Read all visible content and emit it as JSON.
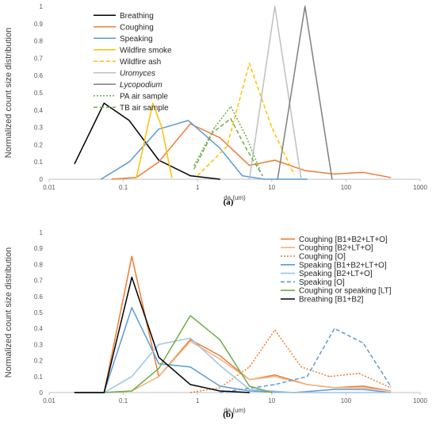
{
  "chart_data": [
    {
      "id": "a",
      "type": "line",
      "caption": "(a)",
      "xlabel": "da (um)",
      "ylabel": "Normalized count size distribution",
      "x_scale": "log",
      "xlim": [
        0.01,
        1000
      ],
      "ylim": [
        0,
        1
      ],
      "x_ticks": [
        "0.01",
        "0.1",
        "1",
        "10",
        "100",
        "1000"
      ],
      "y_ticks": [
        "0",
        "0.1",
        "0.2",
        "0.3",
        "0.4",
        "0.5",
        "0.6",
        "0.7",
        "0.8",
        "0.9",
        "1"
      ],
      "grid": false,
      "legend_position": "top-left",
      "series": [
        {
          "name": "Breathing",
          "color": "#000000",
          "dash": "solid",
          "italic": false,
          "points": [
            [
              0.022,
              0.09
            ],
            [
              0.055,
              0.44
            ],
            [
              0.12,
              0.34
            ],
            [
              0.3,
              0.11
            ],
            [
              0.8,
              0.02
            ],
            [
              2,
              0.0
            ]
          ]
        },
        {
          "name": "Coughing",
          "color": "#ED7D31",
          "dash": "solid",
          "italic": false,
          "points": [
            [
              0.07,
              0.0
            ],
            [
              0.15,
              0.01
            ],
            [
              0.3,
              0.1
            ],
            [
              0.8,
              0.32
            ],
            [
              2,
              0.24
            ],
            [
              5,
              0.08
            ],
            [
              11,
              0.11
            ],
            [
              28,
              0.05
            ],
            [
              70,
              0.03
            ],
            [
              170,
              0.04
            ],
            [
              400,
              0.01
            ]
          ]
        },
        {
          "name": "Speaking",
          "color": "#5B9BD5",
          "dash": "solid",
          "italic": false,
          "points": [
            [
              0.05,
              0.0
            ],
            [
              0.12,
              0.1
            ],
            [
              0.3,
              0.29
            ],
            [
              0.75,
              0.34
            ],
            [
              2,
              0.18
            ],
            [
              4,
              0.02
            ],
            [
              8,
              0.0
            ],
            [
              30,
              0.0
            ]
          ]
        },
        {
          "name": "Wildfire smoke",
          "color": "#FFC000",
          "dash": "solid",
          "italic": false,
          "points": [
            [
              0.15,
              0.01
            ],
            [
              0.25,
              0.44
            ],
            [
              0.33,
              0.3
            ],
            [
              0.45,
              0.01
            ]
          ]
        },
        {
          "name": "Wildfire ash",
          "color": "#FFC000",
          "dash": "dashed",
          "italic": false,
          "points": [
            [
              1,
              0.02
            ],
            [
              2.5,
              0.19
            ],
            [
              5,
              0.67
            ],
            [
              10,
              0.3
            ],
            [
              20,
              0.03
            ]
          ]
        },
        {
          "name": "Uromyces",
          "color": "#BFBFBF",
          "dash": "solid",
          "italic": true,
          "points": [
            [
              5,
              0.0
            ],
            [
              11,
              1.0
            ],
            [
              25,
              0.0
            ]
          ]
        },
        {
          "name": "Lycopodium",
          "color": "#7F7F7F",
          "dash": "solid",
          "italic": true,
          "points": [
            [
              12,
              0.0
            ],
            [
              28,
              1.0
            ],
            [
              65,
              0.0
            ]
          ]
        },
        {
          "name": "PA air sample",
          "color": "#70AD47",
          "dash": "dotted",
          "italic": false,
          "points": [
            [
              0.9,
              0.08
            ],
            [
              1.7,
              0.3
            ],
            [
              2.8,
              0.42
            ],
            [
              4.5,
              0.25
            ],
            [
              7,
              0.05
            ]
          ]
        },
        {
          "name": "TB air sample",
          "color": "#70AD47",
          "dash": "dashed",
          "italic": false,
          "points": [
            [
              0.9,
              0.06
            ],
            [
              1.6,
              0.27
            ],
            [
              2.8,
              0.35
            ],
            [
              4.5,
              0.18
            ],
            [
              7.5,
              0.02
            ]
          ]
        }
      ]
    },
    {
      "id": "b",
      "type": "line",
      "caption": "(b)",
      "xlabel": "da (um)",
      "ylabel": "Normalized count size distribution",
      "x_scale": "log",
      "xlim": [
        0.01,
        1000
      ],
      "ylim": [
        0,
        1
      ],
      "x_ticks": [
        "0.01",
        "0.1",
        "1",
        "10",
        "100",
        "1000"
      ],
      "y_ticks": [
        "0",
        "0.1",
        "0.2",
        "0.3",
        "0.4",
        "0.5",
        "0.6",
        "0.7",
        "0.8",
        "0.9",
        "1"
      ],
      "grid": false,
      "legend_position": "top-right",
      "series": [
        {
          "name": "Coughing [B1+B2+LT+O]",
          "color": "#ED7D31",
          "dash": "solid",
          "points": [
            [
              0.022,
              0.0
            ],
            [
              0.055,
              0.0
            ],
            [
              0.13,
              0.85
            ],
            [
              0.3,
              0.1
            ],
            [
              0.8,
              0.33
            ],
            [
              2,
              0.23
            ],
            [
              5,
              0.08
            ],
            [
              11,
              0.11
            ],
            [
              30,
              0.05
            ],
            [
              70,
              0.03
            ],
            [
              170,
              0.04
            ],
            [
              400,
              0.01
            ]
          ]
        },
        {
          "name": "Coughing [B2+LT+O]",
          "color": "#F4B183",
          "dash": "solid",
          "points": [
            [
              0.055,
              0.0
            ],
            [
              0.13,
              0.01
            ],
            [
              0.3,
              0.1
            ],
            [
              0.8,
              0.32
            ],
            [
              2,
              0.21
            ],
            [
              5,
              0.08
            ],
            [
              11,
              0.1
            ],
            [
              30,
              0.05
            ],
            [
              70,
              0.03
            ],
            [
              170,
              0.03
            ],
            [
              400,
              0.01
            ]
          ]
        },
        {
          "name": "Coughing [O]",
          "color": "#ED7D31",
          "dash": "dotted",
          "points": [
            [
              0.8,
              0.0
            ],
            [
              2,
              0.03
            ],
            [
              5,
              0.16
            ],
            [
              11,
              0.39
            ],
            [
              25,
              0.16
            ],
            [
              60,
              0.1
            ],
            [
              150,
              0.12
            ],
            [
              400,
              0.03
            ]
          ]
        },
        {
          "name": "Speaking [B1+B2+LT+O]",
          "color": "#5B9BD5",
          "dash": "solid",
          "points": [
            [
              0.022,
              0.0
            ],
            [
              0.055,
              0.0
            ],
            [
              0.13,
              0.53
            ],
            [
              0.3,
              0.18
            ],
            [
              0.8,
              0.16
            ],
            [
              2,
              0.04
            ],
            [
              5,
              0.01
            ],
            [
              20,
              0.0
            ],
            [
              70,
              0.02
            ],
            [
              170,
              0.02
            ],
            [
              400,
              0.0
            ]
          ]
        },
        {
          "name": "Speaking [B2+LT+O]",
          "color": "#9DC3E6",
          "dash": "solid",
          "points": [
            [
              0.055,
              0.0
            ],
            [
              0.13,
              0.1
            ],
            [
              0.3,
              0.3
            ],
            [
              0.8,
              0.34
            ],
            [
              2,
              0.17
            ],
            [
              5,
              0.02
            ],
            [
              20,
              0.0
            ],
            [
              400,
              0.0
            ]
          ]
        },
        {
          "name": "Speaking [O]",
          "color": "#5B9BD5",
          "dash": "dashed",
          "points": [
            [
              2,
              0.0
            ],
            [
              11,
              0.05
            ],
            [
              30,
              0.1
            ],
            [
              70,
              0.4
            ],
            [
              170,
              0.31
            ],
            [
              400,
              0.04
            ]
          ]
        },
        {
          "name": "Coughing or speaking [LT]",
          "color": "#70AD47",
          "dash": "solid",
          "points": [
            [
              0.055,
              0.0
            ],
            [
              0.13,
              0.01
            ],
            [
              0.3,
              0.15
            ],
            [
              0.8,
              0.48
            ],
            [
              2,
              0.33
            ],
            [
              5,
              0.04
            ],
            [
              10,
              0.0
            ]
          ]
        },
        {
          "name": "Breathing [B1+B2]",
          "color": "#000000",
          "dash": "solid",
          "points": [
            [
              0.022,
              0.0
            ],
            [
              0.055,
              0.0
            ],
            [
              0.13,
              0.72
            ],
            [
              0.3,
              0.22
            ],
            [
              0.8,
              0.05
            ],
            [
              2,
              0.01
            ],
            [
              5,
              0.0
            ]
          ]
        }
      ]
    }
  ]
}
